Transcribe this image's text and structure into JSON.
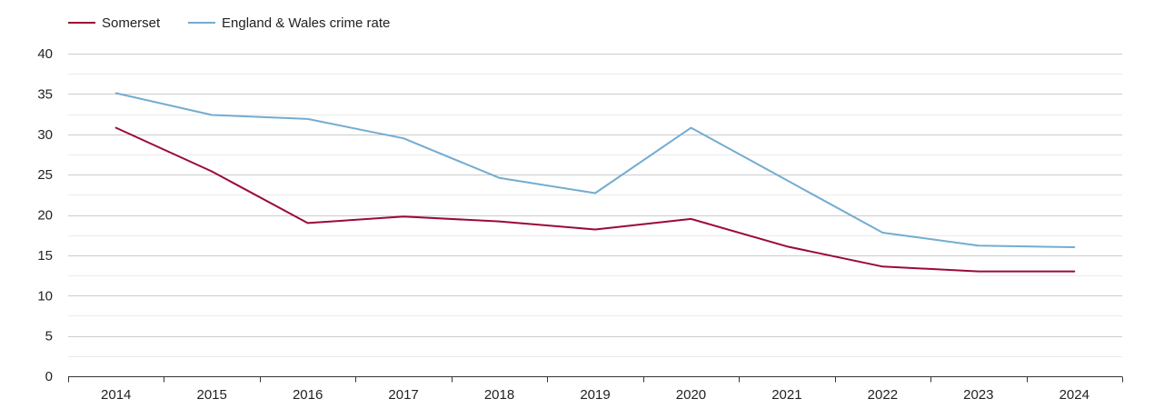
{
  "chart_data": {
    "type": "line",
    "title": "",
    "xlabel": "",
    "ylabel": "",
    "categories": [
      "2014",
      "2015",
      "2016",
      "2017",
      "2018",
      "2019",
      "2020",
      "2021",
      "2022",
      "2023",
      "2024"
    ],
    "ylim": [
      0,
      40
    ],
    "yticks": [
      "0",
      "5",
      "10",
      "15",
      "20",
      "25",
      "30",
      "35",
      "40"
    ],
    "grid": true,
    "legend_position": "top-left",
    "series": [
      {
        "name": "Somerset",
        "color": "#9b0a36",
        "values": [
          30.8,
          25.4,
          19.0,
          19.8,
          19.2,
          18.2,
          19.5,
          16.1,
          13.6,
          13.0,
          13.0
        ]
      },
      {
        "name": "England & Wales crime rate",
        "color": "#74acd0",
        "values": [
          35.1,
          32.4,
          31.9,
          29.5,
          24.6,
          22.7,
          30.8,
          24.3,
          17.8,
          16.2,
          16.0
        ]
      }
    ]
  }
}
